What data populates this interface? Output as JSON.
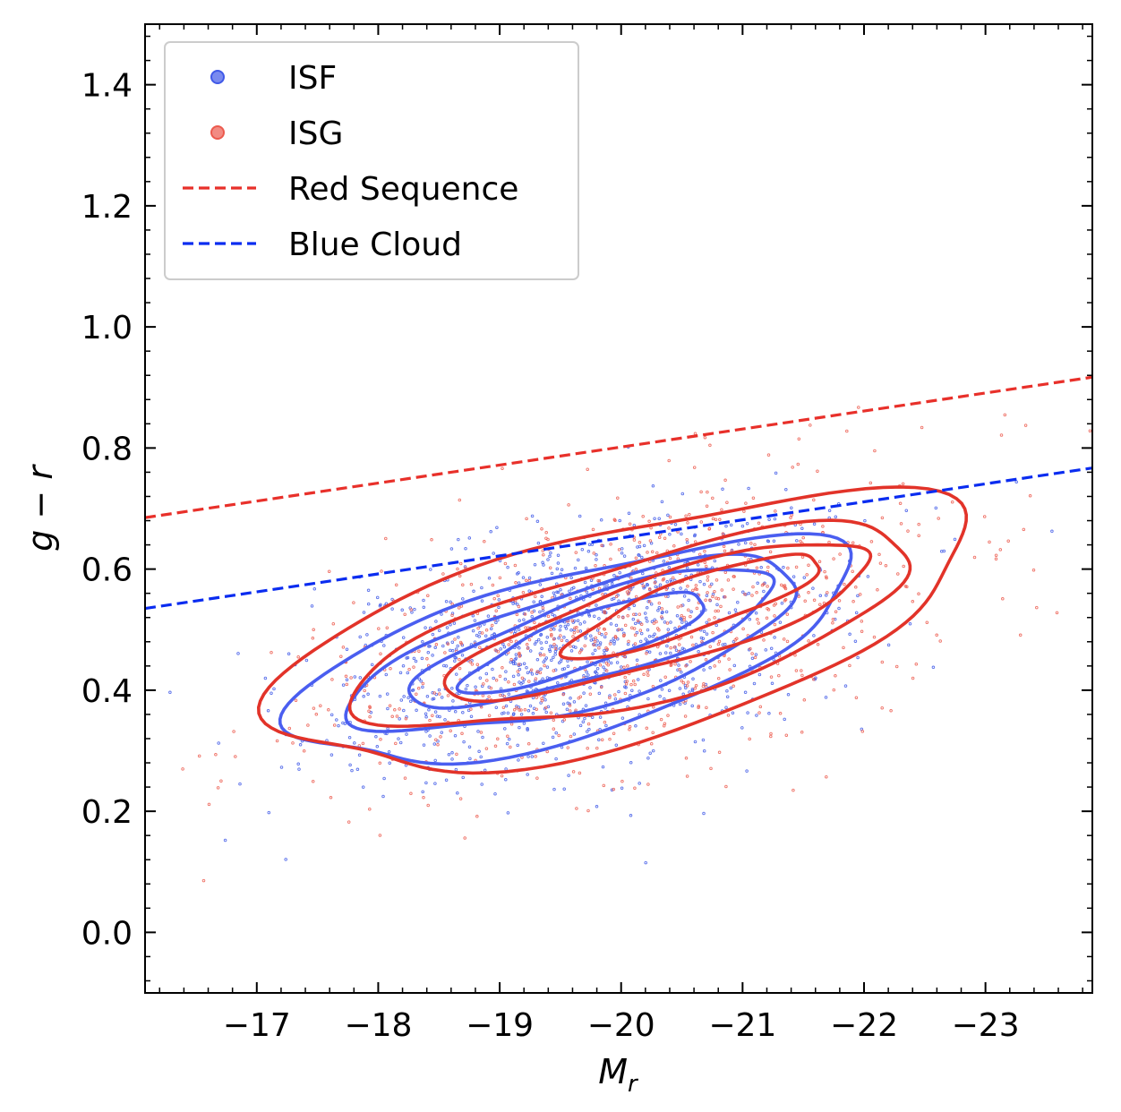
{
  "chart_data": {
    "type": "scatter",
    "title": "",
    "xlabel": "M_r",
    "xlabel_main": "M",
    "xlabel_sub": "r",
    "ylabel": "g − r",
    "xlim": [
      -16.08,
      -23.88
    ],
    "ylim": [
      -0.1,
      1.5
    ],
    "x_inverted": true,
    "x_ticks": [
      -17,
      -18,
      -19,
      -20,
      -21,
      -22,
      -23
    ],
    "x_tick_labels": [
      "−17",
      "−18",
      "−19",
      "−20",
      "−21",
      "−22",
      "−23"
    ],
    "y_ticks": [
      0.0,
      0.2,
      0.4,
      0.6,
      0.8,
      1.0,
      1.2,
      1.4
    ],
    "y_tick_labels": [
      "0.0",
      "0.2",
      "0.4",
      "0.6",
      "0.8",
      "1.0",
      "1.2",
      "1.4"
    ],
    "grid": false,
    "legend_position": "upper-left",
    "legend": [
      {
        "label": "ISF",
        "marker": "dot",
        "color": "#4059e8"
      },
      {
        "label": "ISG",
        "marker": "dot",
        "color": "#ec5a4e"
      },
      {
        "label": "Red Sequence",
        "marker": "dashed-line",
        "color": "#e8302a"
      },
      {
        "label": "Blue Cloud",
        "marker": "dashed-line",
        "color": "#0a2cf0"
      }
    ],
    "lines": [
      {
        "name": "Red Sequence",
        "style": "dashed",
        "color": "#e8302a",
        "x": [
          -16.08,
          -23.88
        ],
        "y": [
          0.685,
          0.917
        ]
      },
      {
        "name": "Blue Cloud",
        "style": "dashed",
        "color": "#0a2cf0",
        "x": [
          -16.08,
          -23.88
        ],
        "y": [
          0.535,
          0.767
        ]
      }
    ],
    "scatter_series": [
      {
        "name": "ISF",
        "color": "#4059e8",
        "center": [
          -19.6,
          0.47
        ],
        "spread": [
          1.05,
          0.095
        ],
        "slope": 0.045,
        "count": 1100
      },
      {
        "name": "ISG",
        "color": "#ec5a4e",
        "center": [
          -20.1,
          0.5
        ],
        "spread": [
          1.25,
          0.11
        ],
        "slope": 0.05,
        "count": 900
      }
    ],
    "contours": [
      {
        "series": "ISF",
        "color": "#4a5ef0",
        "levels": [
          {
            "cx": -19.6,
            "cy": 0.462,
            "rx": 2.3,
            "ry": 0.138,
            "slope": 0.052
          },
          {
            "cx": -19.65,
            "cy": 0.47,
            "rx": 1.85,
            "ry": 0.1,
            "slope": 0.055
          },
          {
            "cx": -19.8,
            "cy": 0.488,
            "rx": 1.5,
            "ry": 0.07,
            "slope": 0.06
          },
          {
            "cx": -19.7,
            "cy": 0.48,
            "rx": 1.0,
            "ry": 0.045,
            "slope": 0.07
          }
        ]
      },
      {
        "series": "ISG",
        "color": "#e23329",
        "levels": [
          {
            "cx": -20.0,
            "cy": 0.495,
            "rx": 2.85,
            "ry": 0.18,
            "slope": 0.048
          },
          {
            "cx": -20.15,
            "cy": 0.5,
            "rx": 2.3,
            "ry": 0.12,
            "slope": 0.05
          },
          {
            "cx": -20.35,
            "cy": 0.515,
            "rx": 1.75,
            "ry": 0.075,
            "slope": 0.06
          },
          {
            "cx": -20.6,
            "cy": 0.54,
            "rx": 1.05,
            "ry": 0.045,
            "slope": 0.07
          }
        ]
      }
    ]
  }
}
